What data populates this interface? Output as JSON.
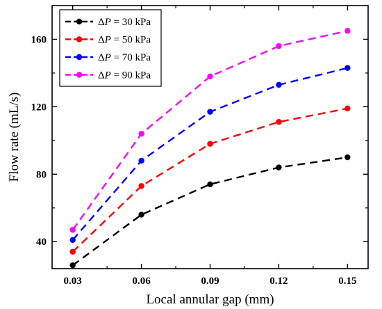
{
  "chart_data": {
    "type": "line",
    "x": [
      0.03,
      0.06,
      0.09,
      0.12,
      0.15
    ],
    "x_tick_labels": [
      "0.03",
      "0.06",
      "0.09",
      "0.12",
      "0.15"
    ],
    "y_ticks": [
      40,
      80,
      120,
      160
    ],
    "xlabel": "Local annular gap (mm)",
    "ylabel": "Flow rate (mL/s)",
    "xlim": [
      0.021,
      0.159
    ],
    "ylim": [
      24,
      180
    ],
    "legend_position": "top-left",
    "line_style": "dashed with circle markers",
    "series": [
      {
        "name": "ΔP = 30 kPa",
        "legend_symbol": "ΔP",
        "legend_value": " = 30 kPa",
        "color": "#000000",
        "values": [
          26,
          56,
          74,
          84,
          90
        ]
      },
      {
        "name": "ΔP = 50 kPa",
        "legend_symbol": "ΔP",
        "legend_value": " = 50 kPa",
        "color": "#ff0000",
        "values": [
          34,
          73,
          98,
          111,
          119
        ]
      },
      {
        "name": "ΔP = 70 kPa",
        "legend_symbol": "ΔP",
        "legend_value": " = 70 kPa",
        "color": "#0000ff",
        "values": [
          41,
          88,
          117,
          133,
          143
        ]
      },
      {
        "name": "ΔP = 90 kPa",
        "legend_symbol": "ΔP",
        "legend_value": " = 90 kPa",
        "color": "#ff00ff",
        "values": [
          47,
          104,
          138,
          156,
          165
        ]
      }
    ]
  }
}
